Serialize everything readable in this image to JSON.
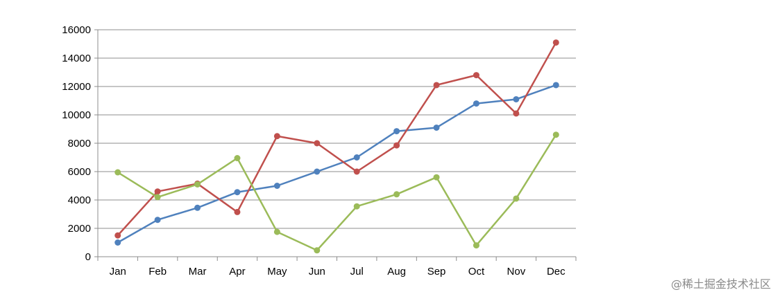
{
  "chart_data": {
    "type": "line",
    "title": "",
    "xlabel": "",
    "ylabel": "",
    "categories": [
      "Jan",
      "Feb",
      "Mar",
      "Apr",
      "May",
      "Jun",
      "Jul",
      "Aug",
      "Sep",
      "Oct",
      "Nov",
      "Dec"
    ],
    "ylim": [
      0,
      16000
    ],
    "yticks": [
      "0",
      "2000",
      "4000",
      "6000",
      "8000",
      "10000",
      "12000",
      "14000",
      "16000"
    ],
    "grid": true,
    "legend": "none",
    "series": [
      {
        "color": "#4F81BD",
        "values": [
          1000,
          2600,
          3450,
          4550,
          5000,
          6000,
          7000,
          8850,
          9100,
          10800,
          11100,
          12100
        ]
      },
      {
        "color": "#C0504D",
        "values": [
          1500,
          4600,
          5150,
          3150,
          8500,
          8000,
          6000,
          7850,
          12100,
          12800,
          10100,
          15100
        ]
      },
      {
        "color": "#9BBB59",
        "values": [
          5950,
          4200,
          5100,
          6950,
          1750,
          450,
          3550,
          4400,
          5600,
          800,
          4100,
          8600
        ]
      }
    ]
  },
  "watermark": "@稀土掘金技术社区"
}
